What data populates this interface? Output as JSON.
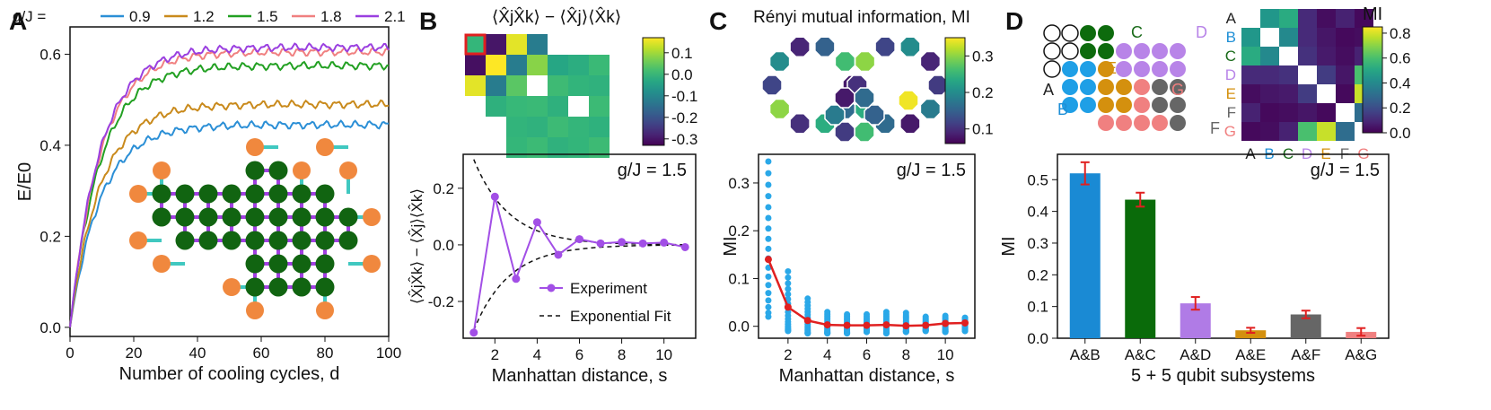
{
  "panel_labels": [
    "A",
    "B",
    "C",
    "D"
  ],
  "chart_data": [
    {
      "id": "A",
      "type": "line",
      "xlabel": "Number of cooling cycles, d",
      "ylabel": "E/E0",
      "xlim": [
        0,
        100
      ],
      "ylim": [
        -0.02,
        0.66
      ],
      "xticks": [
        "0",
        "20",
        "40",
        "60",
        "80",
        "100"
      ],
      "yticks": [
        "0.0",
        "0.2",
        "0.4",
        "0.6"
      ],
      "legend_prefix": "g/J =",
      "series": [
        {
          "name": "0.9",
          "color": "#2b8fd6",
          "plateau": 0.445
        },
        {
          "name": "1.2",
          "color": "#c98a1c",
          "plateau": 0.49
        },
        {
          "name": "1.5",
          "color": "#22a022",
          "plateau": 0.575
        },
        {
          "name": "1.8",
          "color": "#f08080",
          "plateau": 0.605
        },
        {
          "name": "2.1",
          "color": "#9a3fe0",
          "plateau": 0.615
        }
      ]
    },
    {
      "id": "B-heatmap",
      "type": "heatmap",
      "title": "⟨X̂jX̂k⟩ − ⟨X̂j⟩⟨X̂k⟩",
      "colorbar_ticks": [
        "0.1",
        "0.0",
        "-0.1",
        "-0.2",
        "-0.3"
      ],
      "colorbar_range": [
        -0.33,
        0.17
      ]
    },
    {
      "id": "B",
      "type": "line",
      "annotation": "g/J = 1.5",
      "xlabel": "Manhattan distance, s",
      "ylabel": "⟨X̂jX̂k⟩ − ⟨X̂j⟩⟨X̂k⟩",
      "xlim": [
        0.5,
        11.5
      ],
      "ylim": [
        -0.33,
        0.32
      ],
      "xticks": [
        "2",
        "4",
        "6",
        "8",
        "10"
      ],
      "yticks": [
        "-0.2",
        "0.0",
        "0.2"
      ],
      "x": [
        1,
        2,
        3,
        4,
        5,
        6,
        7,
        8,
        9,
        10,
        11
      ],
      "values": [
        -0.31,
        0.17,
        -0.12,
        0.08,
        -0.035,
        0.02,
        0.005,
        0.01,
        0.005,
        0.008,
        -0.008
      ],
      "fit_amplitude": 0.55,
      "fit_decay": 0.6,
      "legend": [
        "Experiment",
        "Exponential Fit"
      ]
    },
    {
      "id": "C-map",
      "type": "heatmap",
      "title": "Rényi mutual information, MI",
      "colorbar_ticks": [
        "0.3",
        "0.2",
        "0.1"
      ],
      "colorbar_range": [
        0.06,
        0.35
      ]
    },
    {
      "id": "C",
      "type": "scatter",
      "annotation": "g/J = 1.5",
      "xlabel": "Manhattan distance, s",
      "ylabel": "MI",
      "xlim": [
        0.5,
        11.5
      ],
      "ylim": [
        -0.025,
        0.36
      ],
      "xticks": [
        "2",
        "4",
        "6",
        "8",
        "10"
      ],
      "yticks": [
        "0.0",
        "0.1",
        "0.2",
        "0.3"
      ],
      "x": [
        1,
        2,
        3,
        4,
        5,
        6,
        7,
        8,
        9,
        10,
        11
      ],
      "mean": [
        0.14,
        0.04,
        0.012,
        0.003,
        0.002,
        0.002,
        0.003,
        0.001,
        0.002,
        0.006,
        0.007
      ],
      "spread_max": [
        0.345,
        0.115,
        0.058,
        0.03,
        0.025,
        0.025,
        0.03,
        0.028,
        0.02,
        0.022,
        0.018
      ],
      "spread_min": [
        0.02,
        -0.01,
        -0.015,
        -0.015,
        -0.015,
        -0.012,
        -0.015,
        -0.012,
        -0.01,
        -0.012,
        -0.01
      ]
    },
    {
      "id": "D-matrix",
      "type": "heatmap",
      "colorbar_label": "MI",
      "colorbar_ticks": [
        "0.8",
        "0.6",
        "0.4",
        "0.2",
        "0.0"
      ],
      "colorbar_range": [
        0,
        0.85
      ],
      "row_labels": [
        "A",
        "B",
        "C",
        "D",
        "E",
        "F",
        "G"
      ],
      "label_colors": [
        "#222222",
        "#1f8fd6",
        "#1a6b1a",
        "#b884e8",
        "#d4900e",
        "#666666",
        "#f07f7f"
      ]
    },
    {
      "id": "D",
      "type": "bar",
      "annotation": "g/J = 1.5",
      "xlabel": "5 + 5 qubit subsystems",
      "ylabel": "MI",
      "ylim": [
        0,
        0.58
      ],
      "yticks": [
        "0.0",
        "0.1",
        "0.2",
        "0.3",
        "0.4",
        "0.5"
      ],
      "categories": [
        "A&B",
        "A&C",
        "A&D",
        "A&E",
        "A&F",
        "A&G"
      ],
      "values": [
        0.52,
        0.437,
        0.11,
        0.025,
        0.075,
        0.02
      ],
      "errors": [
        0.035,
        0.022,
        0.02,
        0.008,
        0.012,
        0.012
      ],
      "colors": [
        "#1a8ad4",
        "#0a6b0a",
        "#b07be6",
        "#d4900e",
        "#666666",
        "#f08080"
      ]
    }
  ]
}
